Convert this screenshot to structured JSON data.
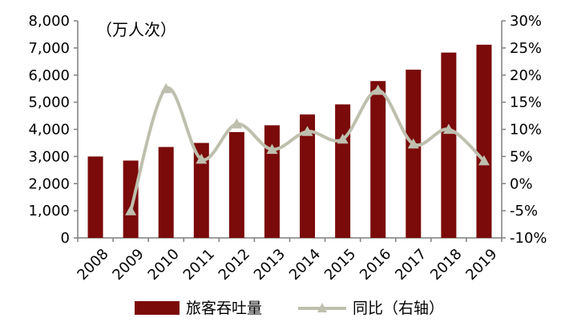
{
  "chart_data": {
    "type": "bar",
    "unit_label": "（万人次）",
    "categories": [
      "2008",
      "2009",
      "2010",
      "2011",
      "2012",
      "2013",
      "2014",
      "2015",
      "2016",
      "2017",
      "2018",
      "2019"
    ],
    "series": [
      {
        "name": "旅客吞吐量",
        "type": "bar",
        "axis": "left",
        "color": "#7B0A0A",
        "values": [
          3000,
          2850,
          3350,
          3500,
          3900,
          4150,
          4550,
          4920,
          5780,
          6200,
          6830,
          7120
        ]
      },
      {
        "name": "同比（右轴）",
        "type": "line",
        "axis": "right",
        "color": "#BFBFAE",
        "marker": "triangle",
        "values": [
          null,
          -5.0,
          17.5,
          4.5,
          11.0,
          6.3,
          9.6,
          8.2,
          17.2,
          7.3,
          10.0,
          4.2
        ]
      }
    ],
    "y_left": {
      "ylim": [
        0,
        8000
      ],
      "ticks": [
        "0",
        "1,000",
        "2,000",
        "3,000",
        "4,000",
        "5,000",
        "6,000",
        "7,000",
        "8,000"
      ]
    },
    "y_right": {
      "ylim": [
        -10,
        30
      ],
      "ticks": [
        "-10%",
        "-5%",
        "0%",
        "5%",
        "10%",
        "15%",
        "20%",
        "25%",
        "30%"
      ]
    },
    "grid": false,
    "legend": "bottom"
  }
}
